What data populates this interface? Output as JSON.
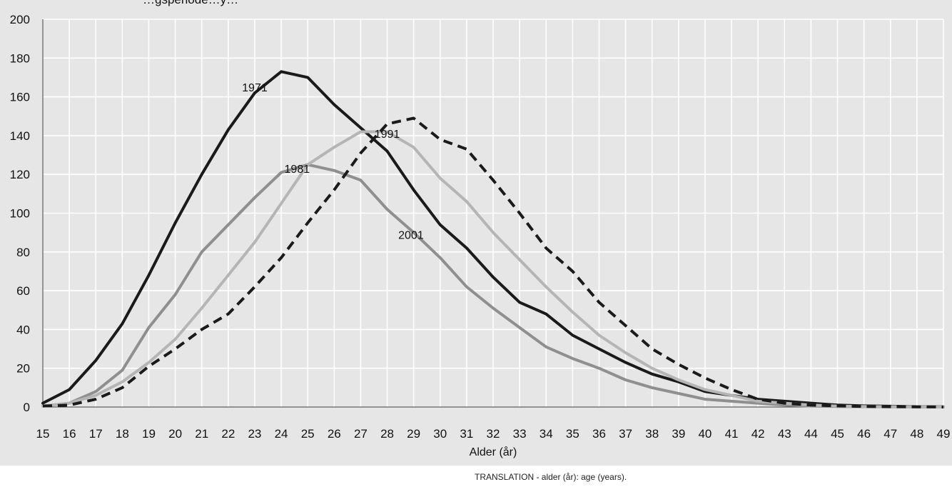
{
  "header": {
    "clipped_title": "…gsperiode…y…"
  },
  "footnote": "TRANSLATION - alder (år): age (years).",
  "chart_data": {
    "type": "line",
    "title": "",
    "xlabel": "Alder (år)",
    "ylabel": "",
    "xlim": [
      15,
      49
    ],
    "ylim": [
      0,
      200
    ],
    "yticks": [
      0,
      20,
      40,
      60,
      80,
      100,
      120,
      140,
      160,
      180,
      200
    ],
    "x": [
      15,
      16,
      17,
      18,
      19,
      20,
      21,
      22,
      23,
      24,
      25,
      26,
      27,
      28,
      29,
      30,
      31,
      32,
      33,
      34,
      35,
      36,
      37,
      38,
      39,
      40,
      41,
      42,
      43,
      44,
      45,
      46,
      47,
      48,
      49
    ],
    "grid": true,
    "legend": "none",
    "series": [
      {
        "name": "1971",
        "color": "#1a1a1a",
        "dash": "solid",
        "label_at": [
          23,
          165
        ],
        "values": [
          2,
          9,
          24,
          43,
          68,
          95,
          120,
          143,
          162,
          173,
          170,
          156,
          144,
          132,
          112,
          94,
          82,
          67,
          54,
          48,
          37,
          30,
          23,
          17,
          13,
          8,
          6,
          4,
          3,
          2,
          1,
          0.6,
          0.4,
          0.2,
          0.1
        ]
      },
      {
        "name": "1981",
        "color": "#8f8f8f",
        "dash": "solid",
        "label_at": [
          24.6,
          123
        ],
        "values": [
          0.5,
          2,
          8,
          19,
          41,
          58,
          80,
          94,
          108,
          121,
          125,
          122,
          117,
          102,
          90,
          77,
          62,
          51,
          41,
          31,
          25,
          20,
          14,
          10,
          7,
          4,
          3,
          2,
          1,
          0.5,
          0.3,
          0.2,
          0.1,
          0.05,
          0
        ]
      },
      {
        "name": "1991",
        "color": "#b5b5b5",
        "dash": "solid",
        "label_at": [
          28,
          141
        ],
        "values": [
          0.5,
          2,
          6,
          13,
          23,
          35,
          51,
          68,
          85,
          105,
          125,
          134,
          142,
          142,
          134,
          118,
          106,
          90,
          76,
          62,
          49,
          37,
          28,
          20,
          14,
          9,
          6,
          3,
          2,
          1,
          0.5,
          0.3,
          0.2,
          0.1,
          0
        ]
      },
      {
        "name": "2001",
        "color": "#1a1a1a",
        "dash": "dashed",
        "label_at": [
          28.9,
          89
        ],
        "values": [
          0.5,
          1,
          4,
          10,
          21,
          30,
          40,
          48,
          62,
          77,
          95,
          112,
          131,
          146,
          149,
          138,
          133,
          117,
          100,
          82,
          70,
          54,
          42,
          30,
          22,
          15,
          9,
          4,
          2,
          1,
          0.6,
          0.3,
          0.2,
          0.1,
          0
        ]
      }
    ]
  }
}
